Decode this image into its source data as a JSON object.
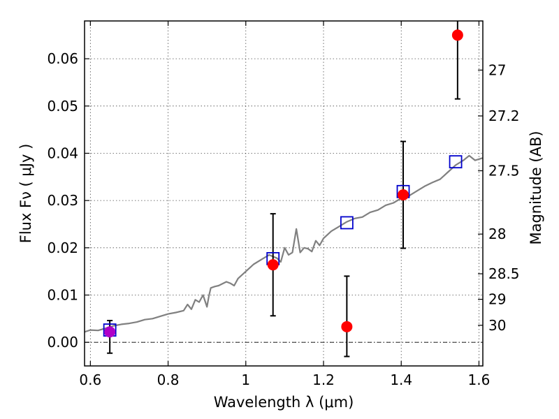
{
  "chart_data": {
    "type": "scatter",
    "xlabel": "Wavelength  λ (μm)",
    "ylabel_left": "Flux  Fν  ( μJy )",
    "ylabel_right": "Magnitude (AB)",
    "xlim": [
      0.585,
      1.61
    ],
    "ylim": [
      -0.005,
      0.068
    ],
    "grid": true,
    "x_ticks": [
      {
        "value": 0.6,
        "label": "0.6"
      },
      {
        "value": 0.8,
        "label": "0.8"
      },
      {
        "value": 1.0,
        "label": "1"
      },
      {
        "value": 1.2,
        "label": "1.2"
      },
      {
        "value": 1.4,
        "label": "1.4"
      },
      {
        "value": 1.6,
        "label": "1.6"
      }
    ],
    "y_ticks": [
      {
        "value": 0.0,
        "label": "0.00"
      },
      {
        "value": 0.01,
        "label": "0.01"
      },
      {
        "value": 0.02,
        "label": "0.02"
      },
      {
        "value": 0.03,
        "label": "0.03"
      },
      {
        "value": 0.04,
        "label": "0.04"
      },
      {
        "value": 0.05,
        "label": "0.05"
      },
      {
        "value": 0.06,
        "label": "0.06"
      }
    ],
    "right_ticks": [
      {
        "flux": 0.0576,
        "label": "27"
      },
      {
        "flux": 0.0479,
        "label": "27.2"
      },
      {
        "flux": 0.0363,
        "label": "27.5"
      },
      {
        "flux": 0.0229,
        "label": "28"
      },
      {
        "flux": 0.0145,
        "label": "28.5"
      },
      {
        "flux": 0.0091,
        "label": "29"
      },
      {
        "flux": 0.0036,
        "label": "30"
      }
    ],
    "series": [
      {
        "style": "line",
        "color": "#808080",
        "x": [
          0.585,
          0.6,
          0.62,
          0.64,
          0.66,
          0.68,
          0.7,
          0.72,
          0.74,
          0.76,
          0.78,
          0.8,
          0.82,
          0.84,
          0.85,
          0.86,
          0.87,
          0.88,
          0.89,
          0.9,
          0.905,
          0.91,
          0.92,
          0.93,
          0.95,
          0.96,
          0.97,
          0.98,
          1.0,
          1.02,
          1.04,
          1.06,
          1.08,
          1.09,
          1.1,
          1.11,
          1.12,
          1.13,
          1.14,
          1.15,
          1.16,
          1.17,
          1.18,
          1.19,
          1.2,
          1.22,
          1.24,
          1.26,
          1.28,
          1.3,
          1.32,
          1.34,
          1.36,
          1.38,
          1.4,
          1.42,
          1.44,
          1.46,
          1.48,
          1.5,
          1.52,
          1.54,
          1.56,
          1.575,
          1.59,
          1.61
        ],
        "y": [
          0.0022,
          0.0026,
          0.0025,
          0.003,
          0.0035,
          0.0038,
          0.004,
          0.0043,
          0.0048,
          0.005,
          0.0055,
          0.006,
          0.0063,
          0.0067,
          0.008,
          0.007,
          0.009,
          0.0085,
          0.01,
          0.0075,
          0.0098,
          0.0115,
          0.0118,
          0.012,
          0.0128,
          0.0125,
          0.012,
          0.0135,
          0.015,
          0.0165,
          0.0175,
          0.0185,
          0.0178,
          0.017,
          0.02,
          0.0185,
          0.019,
          0.024,
          0.019,
          0.02,
          0.0198,
          0.0192,
          0.0215,
          0.0205,
          0.022,
          0.0235,
          0.0245,
          0.0255,
          0.0262,
          0.0265,
          0.0275,
          0.028,
          0.029,
          0.0295,
          0.0305,
          0.031,
          0.032,
          0.033,
          0.0338,
          0.0345,
          0.036,
          0.0375,
          0.0385,
          0.0395,
          0.0385,
          0.039
        ]
      },
      {
        "style": "open-square",
        "color": "#0000cc",
        "x": [
          0.65,
          1.07,
          1.26,
          1.405,
          1.54
        ],
        "y": [
          0.0026,
          0.0177,
          0.0253,
          0.0319,
          0.0382
        ]
      },
      {
        "style": "filled-circle",
        "color": "#ff0000",
        "x": [
          0.65,
          1.07,
          1.26,
          1.405,
          1.545
        ],
        "y": [
          0.0022,
          0.0164,
          0.0033,
          0.0312,
          0.065
        ],
        "yerr_low": [
          0.0045,
          0.0108,
          0.0063,
          0.0113,
          0.0135
        ],
        "yerr_high": [
          0.0024,
          0.0108,
          0.0107,
          0.0113,
          0.003
        ]
      }
    ]
  }
}
